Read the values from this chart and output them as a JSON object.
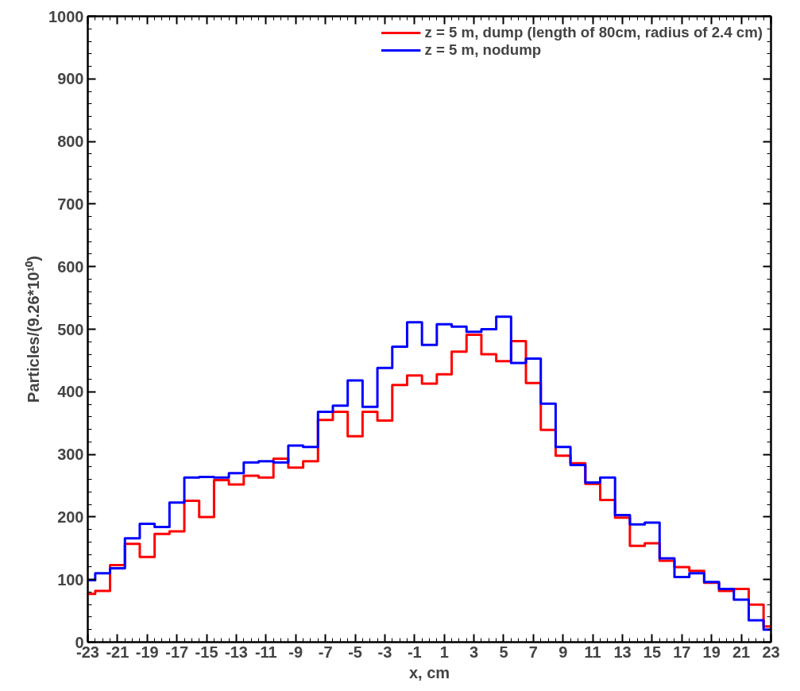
{
  "chart_data": {
    "type": "step",
    "xlabel": "x, cm",
    "ylabel": "Particles/(9.26*10¹⁰)",
    "x": [
      -23,
      -22,
      -21,
      -20,
      -19,
      -18,
      -17,
      -16,
      -15,
      -14,
      -13,
      -12,
      -11,
      -10,
      -9,
      -8,
      -7,
      -6,
      -5,
      -4,
      -3,
      -2,
      -1,
      0,
      1,
      2,
      3,
      4,
      5,
      6,
      7,
      8,
      9,
      10,
      11,
      12,
      13,
      14,
      15,
      16,
      17,
      18,
      19,
      20,
      21,
      22,
      23
    ],
    "series": [
      {
        "name": "z = 5 m, dump (length of 80cm, radius of 2.4 cm)",
        "color": "#ff0000",
        "values": [
          77,
          82,
          123,
          157,
          136,
          173,
          177,
          226,
          200,
          259,
          252,
          266,
          263,
          293,
          279,
          289,
          355,
          368,
          329,
          368,
          354,
          411,
          426,
          413,
          428,
          464,
          491,
          460,
          449,
          481,
          414,
          339,
          298,
          286,
          253,
          227,
          199,
          154,
          158,
          130,
          120,
          114,
          95,
          82,
          85,
          60,
          25
        ]
      },
      {
        "name": "z = 5 m, nodump",
        "color": "#0000ff",
        "values": [
          99,
          110,
          118,
          166,
          189,
          184,
          223,
          263,
          264,
          263,
          270,
          287,
          289,
          287,
          314,
          312,
          368,
          378,
          418,
          376,
          438,
          472,
          511,
          475,
          508,
          504,
          496,
          500,
          520,
          446,
          453,
          381,
          312,
          283,
          255,
          263,
          203,
          188,
          191,
          134,
          104,
          110,
          96,
          85,
          68,
          35,
          20
        ]
      }
    ],
    "xlim": [
      -23,
      23
    ],
    "ylim": [
      0,
      1000
    ],
    "xticks": [
      -23,
      -21,
      -19,
      -17,
      -15,
      -13,
      -11,
      -9,
      -7,
      -5,
      -3,
      -1,
      1,
      3,
      5,
      7,
      9,
      11,
      13,
      15,
      17,
      19,
      21,
      23
    ],
    "yticks": [
      0,
      100,
      200,
      300,
      400,
      500,
      600,
      700,
      800,
      900,
      1000
    ],
    "grid": false,
    "legend": "top right",
    "line_style": "solid"
  }
}
